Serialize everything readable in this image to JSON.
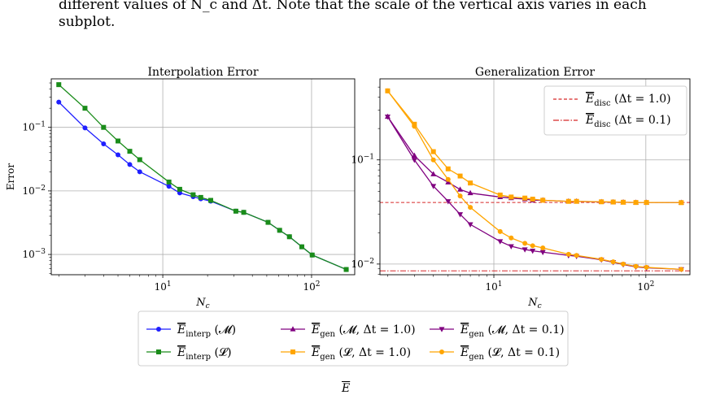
{
  "caption": {
    "line1": "different values of N_c and Δt. Note that the scale of the vertical axis varies in each",
    "line2": "subplot."
  },
  "chart_data": [
    {
      "type": "line",
      "title": "Interpolation Error",
      "xlabel": "N_c",
      "ylabel": "Error",
      "xscale": "log",
      "yscale": "log",
      "xlim": [
        1.78,
        195
      ],
      "ylim": [
        0.00048,
        0.58
      ],
      "xticks": [
        {
          "value": 10,
          "label": "10^1"
        },
        {
          "value": 100,
          "label": "10^2"
        }
      ],
      "yticks": [
        {
          "value": 0.001,
          "label": "10^-3"
        },
        {
          "value": 0.01,
          "label": "10^-2"
        },
        {
          "value": 0.1,
          "label": "10^-1"
        }
      ],
      "grid": true,
      "series": [
        {
          "key": "interp_M",
          "color": "#1f1fff",
          "marker": "circle",
          "x": [
            2,
            3,
            4,
            5,
            6,
            7,
            11,
            13,
            16,
            18,
            21,
            31,
            35,
            51,
            61,
            71,
            86,
            101,
            171
          ],
          "y": [
            0.25,
            0.098,
            0.055,
            0.037,
            0.026,
            0.02,
            0.0118,
            0.0093,
            0.0081,
            0.0075,
            0.0069,
            0.0048,
            0.0046,
            0.0032,
            0.0024,
            0.0019,
            0.00132,
            0.00098,
            0.00058
          ]
        },
        {
          "key": "interp_L",
          "color": "#1a8c1a",
          "marker": "square",
          "x": [
            2,
            3,
            4,
            5,
            6,
            7,
            11,
            13,
            16,
            18,
            21,
            31,
            35,
            51,
            61,
            71,
            86,
            101,
            171
          ],
          "y": [
            0.47,
            0.2,
            0.1,
            0.061,
            0.042,
            0.031,
            0.0138,
            0.0106,
            0.0087,
            0.0079,
            0.0071,
            0.0048,
            0.0046,
            0.0032,
            0.0024,
            0.0019,
            0.00132,
            0.00098,
            0.00058
          ]
        }
      ]
    },
    {
      "type": "line",
      "title": "Generalization Error",
      "xlabel": "N_c",
      "xscale": "log",
      "yscale": "log",
      "xlim": [
        1.78,
        195
      ],
      "ylim": [
        0.0079,
        0.6
      ],
      "xticks": [
        {
          "value": 10,
          "label": "10^1"
        },
        {
          "value": 100,
          "label": "10^2"
        }
      ],
      "yticks": [
        {
          "value": 0.01,
          "label": "10^-2"
        },
        {
          "value": 0.1,
          "label": "10^-1"
        }
      ],
      "grid": true,
      "reference_lines": [
        {
          "key": "disc_1",
          "y": 0.039,
          "color": "#d62728",
          "dash": "4,2.5",
          "legend": "E_disc (Δt = 1.0)"
        },
        {
          "key": "disc_01",
          "y": 0.0086,
          "color": "#d62728",
          "dash": "7,2,1.5,2",
          "legend": "E_disc (Δt = 0.1)"
        }
      ],
      "legend_position": "top-right",
      "series": [
        {
          "key": "gen_M_1",
          "color": "#800080",
          "marker": "triangle-up",
          "x": [
            2,
            3,
            4,
            5,
            6,
            7,
            11,
            13,
            16,
            18,
            21,
            31,
            35,
            51,
            61,
            71,
            86,
            101,
            171
          ],
          "y": [
            0.26,
            0.11,
            0.073,
            0.061,
            0.052,
            0.048,
            0.044,
            0.043,
            0.042,
            0.041,
            0.041,
            0.04,
            0.04,
            0.0395,
            0.0393,
            0.0392,
            0.039,
            0.039,
            0.0389
          ]
        },
        {
          "key": "gen_L_1",
          "color": "#ffa500",
          "marker": "square",
          "x": [
            2,
            3,
            4,
            5,
            6,
            7,
            11,
            13,
            16,
            18,
            21,
            31,
            35,
            51,
            61,
            71,
            86,
            101,
            171
          ],
          "y": [
            0.46,
            0.22,
            0.12,
            0.082,
            0.07,
            0.06,
            0.046,
            0.044,
            0.043,
            0.042,
            0.041,
            0.04,
            0.04,
            0.0396,
            0.0394,
            0.0392,
            0.039,
            0.039,
            0.0389
          ]
        },
        {
          "key": "gen_M_01",
          "color": "#800080",
          "marker": "triangle-down",
          "x": [
            2,
            3,
            4,
            5,
            6,
            7,
            11,
            13,
            16,
            18,
            21,
            31,
            35,
            51,
            61,
            71,
            86,
            101,
            171
          ],
          "y": [
            0.26,
            0.1,
            0.056,
            0.04,
            0.03,
            0.024,
            0.0165,
            0.0148,
            0.0138,
            0.0134,
            0.013,
            0.0121,
            0.0119,
            0.011,
            0.0104,
            0.0099,
            0.0094,
            0.0092,
            0.0089
          ]
        },
        {
          "key": "gen_L_01",
          "color": "#ffa500",
          "marker": "circle",
          "x": [
            2,
            3,
            4,
            5,
            6,
            7,
            11,
            13,
            16,
            18,
            21,
            31,
            35,
            51,
            61,
            71,
            86,
            101,
            171
          ],
          "y": [
            0.46,
            0.21,
            0.1,
            0.065,
            0.045,
            0.035,
            0.0205,
            0.0178,
            0.0158,
            0.015,
            0.0143,
            0.0124,
            0.0121,
            0.0111,
            0.0105,
            0.01,
            0.0095,
            0.0093,
            0.0089
          ]
        }
      ]
    }
  ],
  "legend": {
    "entries": [
      {
        "key": "interp_M",
        "base": "E",
        "sub": "interp",
        "args": "(𝓜)"
      },
      {
        "key": "gen_M_1",
        "base": "E",
        "sub": "gen",
        "args": "(𝓜, Δt = 1.0)"
      },
      {
        "key": "gen_M_01",
        "base": "E",
        "sub": "gen",
        "args": "(𝓜, Δt = 0.1)"
      },
      {
        "key": "interp_L",
        "base": "E",
        "sub": "interp",
        "args": "(𝓛)"
      },
      {
        "key": "gen_L_1",
        "base": "E",
        "sub": "gen",
        "args": "(𝓛, Δt = 1.0)"
      },
      {
        "key": "gen_L_01",
        "base": "E",
        "sub": "gen",
        "args": "(𝓛, Δt = 0.1)"
      }
    ],
    "inner_entries": [
      {
        "key": "disc_1",
        "base": "E",
        "sub": "disc",
        "args": "(Δt = 1.0)"
      },
      {
        "key": "disc_01",
        "base": "E",
        "sub": "disc",
        "args": "(Δt = 0.1)"
      }
    ]
  },
  "bottom_glyph": "E"
}
